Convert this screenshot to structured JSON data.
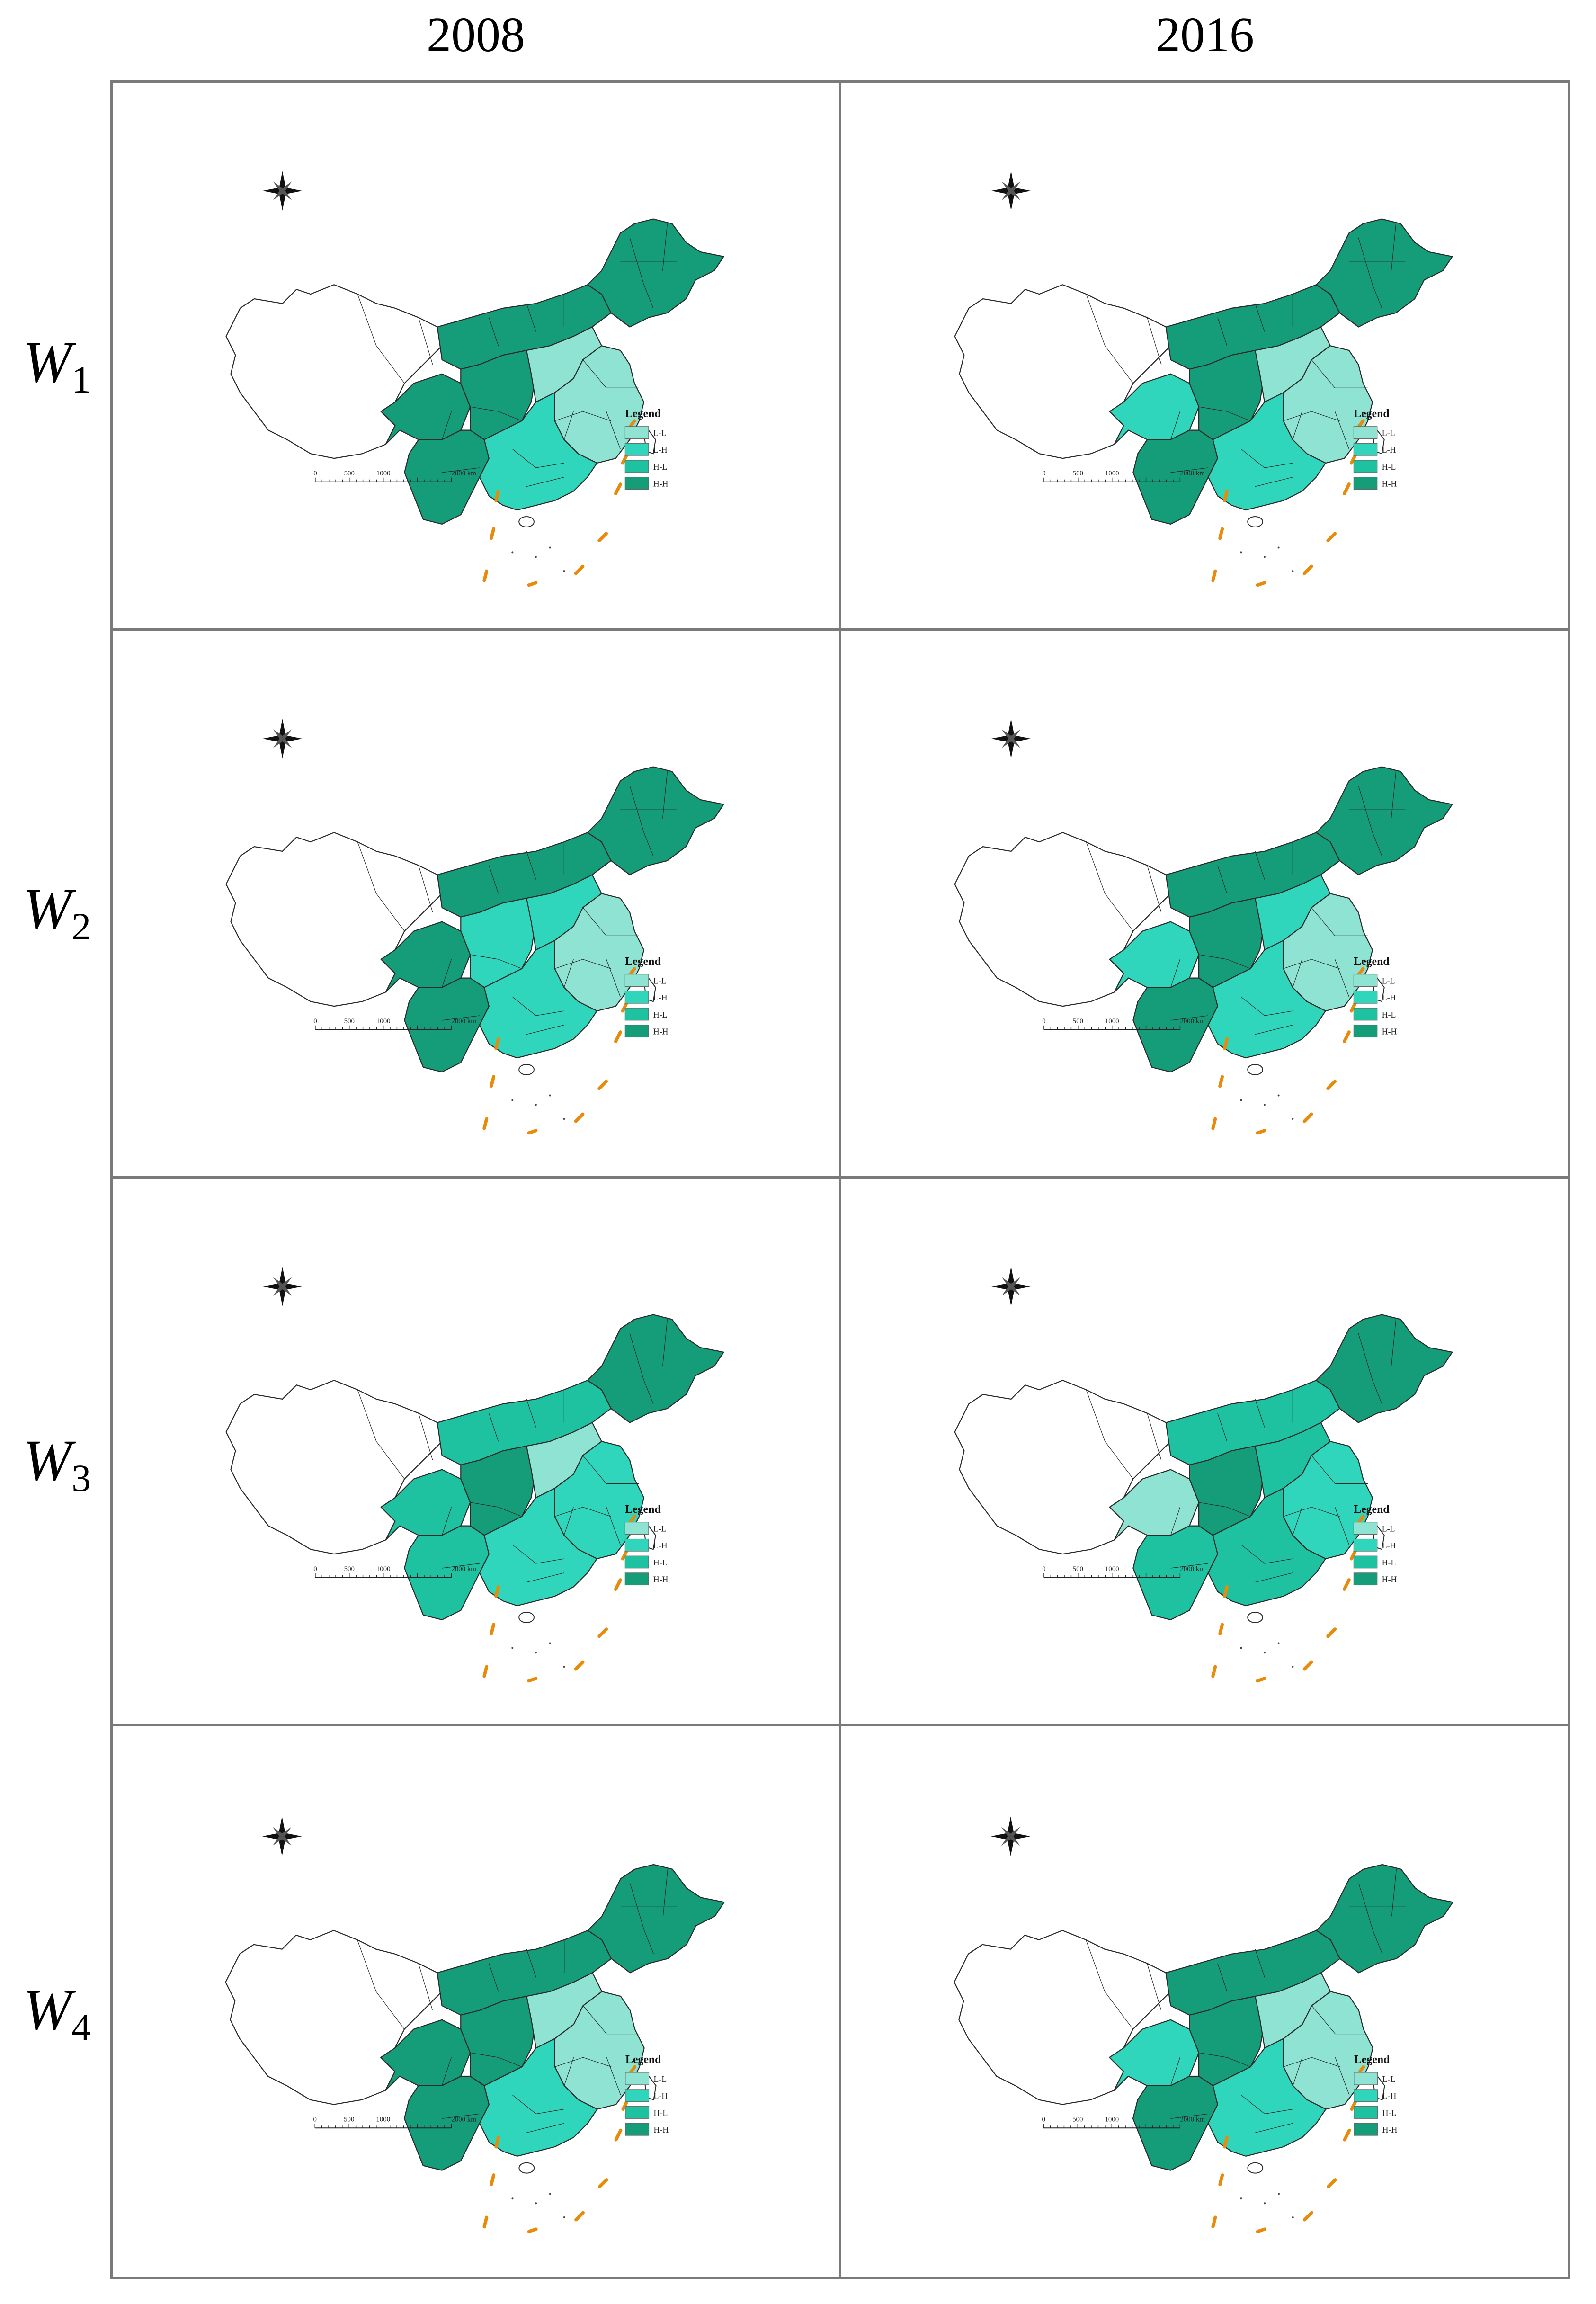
{
  "columns": [
    "2008",
    "2016"
  ],
  "rows": [
    {
      "base": "W",
      "sub": "1"
    },
    {
      "base": "W",
      "sub": "2"
    },
    {
      "base": "W",
      "sub": "3"
    },
    {
      "base": "W",
      "sub": "4"
    }
  ],
  "legend": {
    "title": "Legend",
    "items": [
      {
        "label": "L-L",
        "color": "#8fe3d2"
      },
      {
        "label": "L-H",
        "color": "#2fd6bb"
      },
      {
        "label": "H-L",
        "color": "#1ec2a0"
      },
      {
        "label": "H-H",
        "color": "#159c79"
      }
    ]
  },
  "scale": {
    "ticks": [
      "0",
      "500",
      "1000",
      "2000 km"
    ]
  },
  "colors": {
    "region_outline": "#2a2a2a",
    "unclassified_fill": "#ffffff",
    "island_dash": "#e88a0a",
    "frame": "#7a7a7a"
  },
  "map_panels": [
    {
      "row": "W1",
      "column": "2008",
      "dominant": "H-H",
      "regions": {
        "west": "unfilled",
        "north": "H-H",
        "northeast": "H-H",
        "center": "H-H",
        "east_coast": "L-L",
        "north_china": "L-L",
        "south": "L-H",
        "southwest": "H-H",
        "tibet_plateau_east": "H-H"
      }
    },
    {
      "row": "W1",
      "column": "2016",
      "dominant": "H-H",
      "regions": {
        "west": "unfilled",
        "north": "H-H",
        "northeast": "H-H",
        "center": "H-H",
        "east_coast": "L-L",
        "north_china": "L-L",
        "south": "L-H",
        "southwest": "H-H",
        "tibet_plateau_east": "L-H"
      }
    },
    {
      "row": "W2",
      "column": "2008",
      "dominant": "H-H",
      "regions": {
        "west": "unfilled",
        "north": "H-H",
        "northeast": "H-H",
        "center": "L-H",
        "east_coast": "L-L",
        "north_china": "L-H",
        "south": "L-H",
        "southwest": "H-H",
        "tibet_plateau_east": "H-H"
      }
    },
    {
      "row": "W2",
      "column": "2016",
      "dominant": "H-H",
      "regions": {
        "west": "unfilled",
        "north": "H-H",
        "northeast": "H-H",
        "center": "H-H",
        "east_coast": "L-L",
        "north_china": "L-H",
        "south": "L-H",
        "southwest": "H-H",
        "tibet_plateau_east": "L-H"
      }
    },
    {
      "row": "W3",
      "column": "2008",
      "dominant": "H-L",
      "regions": {
        "west": "unfilled",
        "north": "H-L",
        "northeast": "H-H",
        "center": "H-H",
        "east_coast": "L-H",
        "north_china": "L-L",
        "south": "L-H",
        "southwest": "H-L",
        "tibet_plateau_east": "H-L"
      }
    },
    {
      "row": "W3",
      "column": "2016",
      "dominant": "H-L",
      "regions": {
        "west": "unfilled",
        "north": "H-L",
        "northeast": "H-H",
        "center": "H-H",
        "east_coast": "L-H",
        "north_china": "H-L",
        "south": "H-L",
        "southwest": "H-L",
        "tibet_plateau_east": "L-L"
      }
    },
    {
      "row": "W4",
      "column": "2008",
      "dominant": "H-H",
      "regions": {
        "west": "unfilled",
        "north": "H-H",
        "northeast": "H-H",
        "center": "H-H",
        "east_coast": "L-L",
        "north_china": "L-L",
        "south": "L-H",
        "southwest": "H-H",
        "tibet_plateau_east": "H-H"
      }
    },
    {
      "row": "W4",
      "column": "2016",
      "dominant": "H-H",
      "regions": {
        "west": "unfilled",
        "north": "H-H",
        "northeast": "H-H",
        "center": "H-H",
        "east_coast": "L-L",
        "north_china": "L-L",
        "south": "L-H",
        "southwest": "H-H",
        "tibet_plateau_east": "L-H"
      }
    }
  ]
}
